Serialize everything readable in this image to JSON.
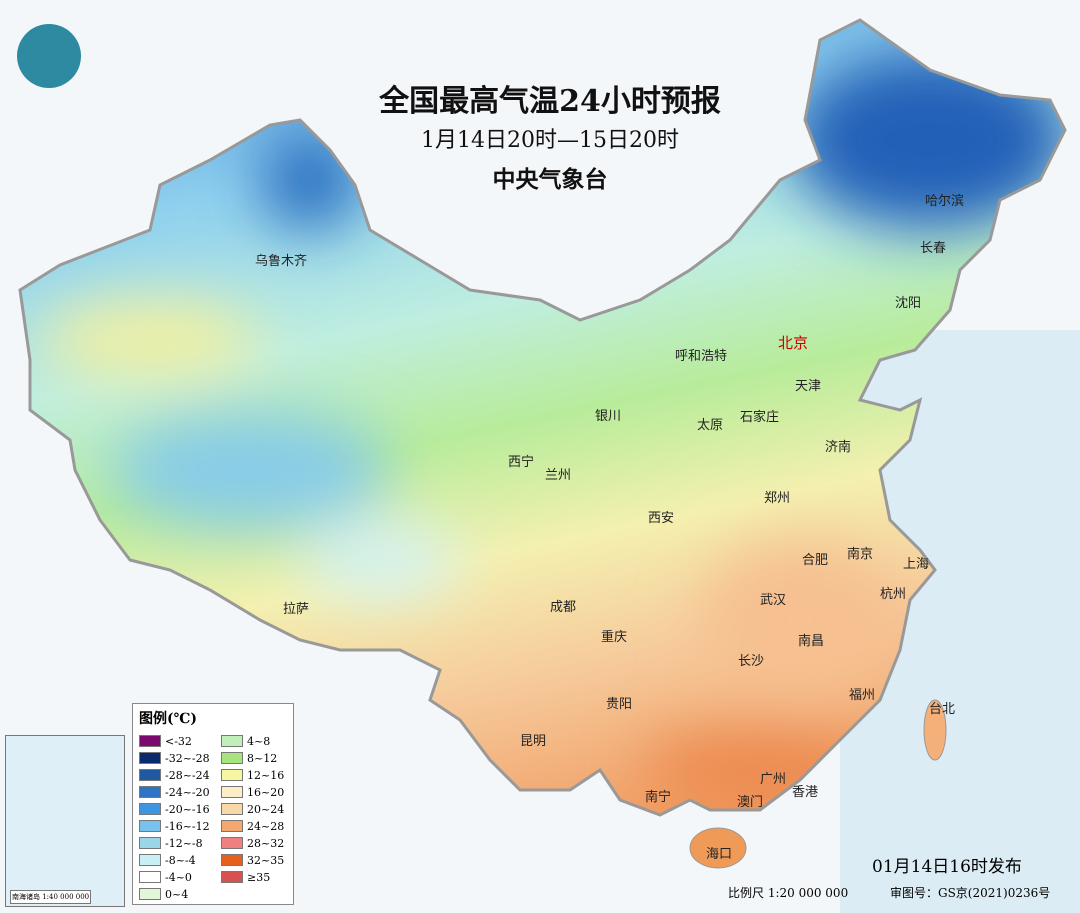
{
  "header": {
    "title": "全国最高气温24小时预报",
    "period": "1月14日20时—15日20时",
    "issuer": "中央气象台"
  },
  "logo_icon": "cma-logo",
  "cities": [
    {
      "name": "乌鲁木齐"
    },
    {
      "name": "哈尔滨"
    },
    {
      "name": "长春"
    },
    {
      "name": "沈阳"
    },
    {
      "name": "呼和浩特"
    },
    {
      "name": "北京",
      "capital": true
    },
    {
      "name": "天津"
    },
    {
      "name": "银川"
    },
    {
      "name": "太原"
    },
    {
      "name": "石家庄"
    },
    {
      "name": "济南"
    },
    {
      "name": "西宁"
    },
    {
      "name": "兰州"
    },
    {
      "name": "郑州"
    },
    {
      "name": "西安"
    },
    {
      "name": "合肥"
    },
    {
      "name": "南京"
    },
    {
      "name": "上海"
    },
    {
      "name": "成都"
    },
    {
      "name": "杭州"
    },
    {
      "name": "武汉"
    },
    {
      "name": "重庆"
    },
    {
      "name": "南昌"
    },
    {
      "name": "拉萨"
    },
    {
      "name": "长沙"
    },
    {
      "name": "福州"
    },
    {
      "name": "台北"
    },
    {
      "name": "贵阳"
    },
    {
      "name": "昆明"
    },
    {
      "name": "南宁"
    },
    {
      "name": "广州"
    },
    {
      "name": "香港"
    },
    {
      "name": "澳门"
    },
    {
      "name": "海口"
    }
  ],
  "legend": {
    "title": "图例(℃)",
    "items": [
      {
        "label": "<-32",
        "color": "#7a0a6e"
      },
      {
        "label": "-32~-28",
        "color": "#0a2a6e"
      },
      {
        "label": "-28~-24",
        "color": "#1f5aa0"
      },
      {
        "label": "-24~-20",
        "color": "#2f74c4"
      },
      {
        "label": "-20~-16",
        "color": "#3f96e0"
      },
      {
        "label": "-16~-12",
        "color": "#78c2ee"
      },
      {
        "label": "-12~-8",
        "color": "#9ad6e8"
      },
      {
        "label": "-8~-4",
        "color": "#c6f0f6"
      },
      {
        "label": "-4~0",
        "color": "#ffffff"
      },
      {
        "label": "0~4",
        "color": "#e2f6d8"
      },
      {
        "label": "4~8",
        "color": "#bff0b8"
      },
      {
        "label": "8~12",
        "color": "#a8e47e"
      },
      {
        "label": "12~16",
        "color": "#f6f6a0"
      },
      {
        "label": "16~20",
        "color": "#fbeec8"
      },
      {
        "label": "20~24",
        "color": "#f8d8a8"
      },
      {
        "label": "24~28",
        "color": "#f4a870"
      },
      {
        "label": "28~32",
        "color": "#f08080"
      },
      {
        "label": "32~35",
        "color": "#e8601e"
      },
      {
        "label": "≥35",
        "color": "#d85050"
      }
    ]
  },
  "footer": {
    "published": "01月14日16时发布",
    "scale": "比例尺 1:20 000 000",
    "review_no": "审图号：GS京(2021)0236号"
  },
  "inset": {
    "scale": "南海诸岛 1:40 000 000"
  }
}
